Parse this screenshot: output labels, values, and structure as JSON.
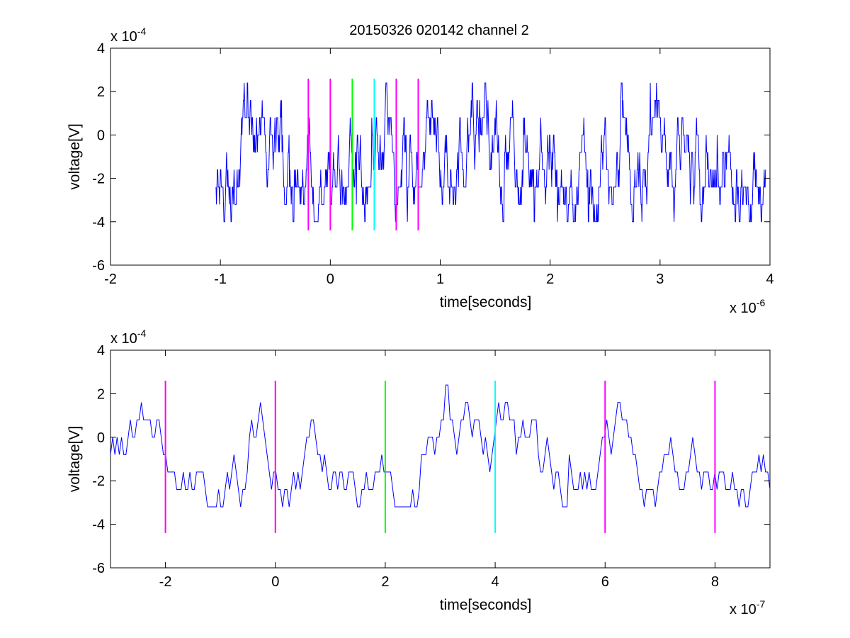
{
  "figure_title": "20150326 020142 channel 2",
  "chart_data": [
    {
      "type": "line",
      "title": "20150326 020142 channel 2",
      "xlabel": "time[seconds]",
      "ylabel": "voltage[V]",
      "x_multiplier_label": "x 10",
      "x_multiplier_exp": "-6",
      "y_multiplier_label": "x 10",
      "y_multiplier_exp": "-4",
      "xlim": [
        -2e-06,
        4e-06
      ],
      "ylim": [
        -0.0006,
        0.0004
      ],
      "xticks": [
        -2e-06,
        -1e-06,
        0,
        1e-06,
        2e-06,
        3e-06,
        4e-06
      ],
      "xtick_labels": [
        "-2",
        "-1",
        "0",
        "1",
        "2",
        "3",
        "4"
      ],
      "yticks": [
        -0.0006,
        -0.0004,
        -0.0002,
        0,
        0.0002,
        0.0004
      ],
      "ytick_labels": [
        "-6",
        "-4",
        "-2",
        "0",
        "2",
        "4"
      ],
      "grid": false,
      "signal": {
        "color": "#0000ff",
        "quantum": 8e-05,
        "x_start": -1.04e-06,
        "x_end": 3.96e-06,
        "n_points": 1250,
        "y_min": -0.0004,
        "y_max": 0.00024
      },
      "markers": [
        {
          "x": -2e-07,
          "color": "#ff00ff",
          "y_range": [
            -0.00044,
            0.00026
          ]
        },
        {
          "x": 0,
          "color": "#ff00ff",
          "y_range": [
            -0.00044,
            0.00026
          ]
        },
        {
          "x": 2e-07,
          "color": "#00ff00",
          "y_range": [
            -0.00044,
            0.00026
          ]
        },
        {
          "x": 4e-07,
          "color": "#00ffff",
          "y_range": [
            -0.00044,
            0.00026
          ]
        },
        {
          "x": 6e-07,
          "color": "#ff00ff",
          "y_range": [
            -0.00044,
            0.00026
          ]
        },
        {
          "x": 8e-07,
          "color": "#ff00ff",
          "y_range": [
            -0.00044,
            0.00026
          ]
        }
      ]
    },
    {
      "type": "line",
      "title": "",
      "xlabel": "time[seconds]",
      "ylabel": "voltage[V]",
      "x_multiplier_label": "x 10",
      "x_multiplier_exp": "-7",
      "y_multiplier_label": "x 10",
      "y_multiplier_exp": "-4",
      "xlim": [
        -3e-07,
        9e-07
      ],
      "ylim": [
        -0.0006,
        0.0004
      ],
      "xticks": [
        -2e-07,
        0,
        2e-07,
        4e-07,
        6e-07,
        8e-07
      ],
      "xtick_labels": [
        "-2",
        "0",
        "2",
        "4",
        "6",
        "8"
      ],
      "yticks": [
        -0.0006,
        -0.0004,
        -0.0002,
        0,
        0.0002,
        0.0004
      ],
      "ytick_labels": [
        "-6",
        "-4",
        "-2",
        "0",
        "2",
        "4"
      ],
      "grid": false,
      "signal": {
        "color": "#0000ff",
        "quantum": 8e-05,
        "x_start": -3e-07,
        "x_end": 9e-07,
        "n_points": 300,
        "y_min": -0.00032,
        "y_max": 0.00024
      },
      "markers": [
        {
          "x": -2e-07,
          "color": "#ff00ff",
          "y_range": [
            -0.00044,
            0.00026
          ]
        },
        {
          "x": 0,
          "color": "#ff00ff",
          "y_range": [
            -0.00044,
            0.00026
          ]
        },
        {
          "x": 2e-07,
          "color": "#00ff00",
          "y_range": [
            -0.00044,
            0.00026
          ]
        },
        {
          "x": 4e-07,
          "color": "#00ffff",
          "y_range": [
            -0.00044,
            0.00026
          ]
        },
        {
          "x": 6e-07,
          "color": "#ff00ff",
          "y_range": [
            -0.00044,
            0.00026
          ]
        },
        {
          "x": 8e-07,
          "color": "#ff00ff",
          "y_range": [
            -0.00044,
            0.00026
          ]
        }
      ]
    }
  ]
}
